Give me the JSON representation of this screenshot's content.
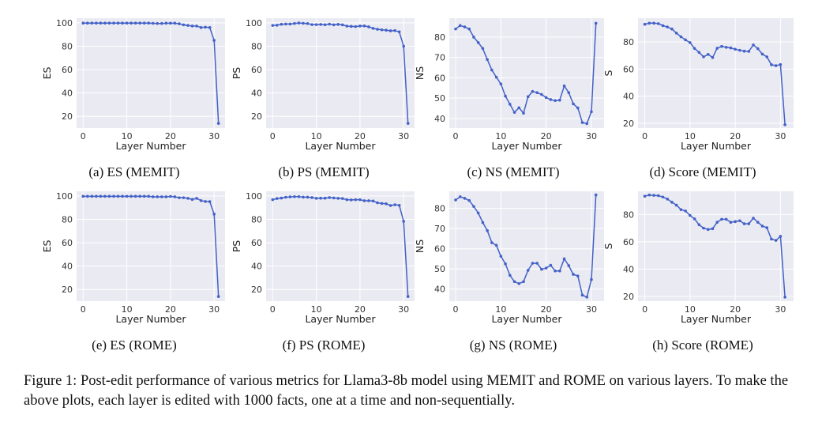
{
  "figure_caption": "Figure 1: Post-edit performance of various metrics for Llama3-8b model using MEMIT and ROME on various layers. To make the above plots, each layer is edited with 1000 facts, one at a time and non-sequentially.",
  "style": {
    "background": "#eaeaf2",
    "grid": "#ffffff",
    "line": "#4361c7"
  },
  "chart_data": [
    {
      "type": "line",
      "caption": "(a) ES (MEMIT)",
      "xlabel": "Layer Number",
      "ylabel": "ES",
      "xlim": [
        -1.5,
        32.5
      ],
      "ylim": [
        10,
        104
      ],
      "xticks": [
        0,
        10,
        20,
        30
      ],
      "yticks": [
        20,
        40,
        60,
        80,
        100
      ],
      "grid": true,
      "x": [
        0,
        1,
        2,
        3,
        4,
        5,
        6,
        7,
        8,
        9,
        10,
        11,
        12,
        13,
        14,
        15,
        16,
        17,
        18,
        19,
        20,
        21,
        22,
        23,
        24,
        25,
        26,
        27,
        28,
        29,
        30,
        31
      ],
      "y": [
        99.8,
        99.8,
        99.8,
        99.8,
        99.8,
        99.8,
        99.8,
        99.8,
        99.8,
        99.8,
        99.8,
        99.8,
        99.8,
        99.8,
        99.8,
        99.8,
        99.6,
        99.5,
        99.5,
        99.7,
        99.7,
        99.7,
        99.2,
        98.3,
        97.8,
        97.3,
        97.3,
        96,
        96.3,
        96,
        85,
        14
      ]
    },
    {
      "type": "line",
      "caption": "(b) PS (MEMIT)",
      "xlabel": "Layer Number",
      "ylabel": "PS",
      "xlim": [
        -1.5,
        32.5
      ],
      "ylim": [
        10,
        104
      ],
      "xticks": [
        0,
        10,
        20,
        30
      ],
      "yticks": [
        20,
        40,
        60,
        80,
        100
      ],
      "grid": true,
      "x": [
        0,
        1,
        2,
        3,
        4,
        5,
        6,
        7,
        8,
        9,
        10,
        11,
        12,
        13,
        14,
        15,
        16,
        17,
        18,
        19,
        20,
        21,
        22,
        23,
        24,
        25,
        26,
        27,
        28,
        29,
        30,
        31
      ],
      "y": [
        97.8,
        98,
        98.8,
        99,
        99,
        99.5,
        99.9,
        99.6,
        99.4,
        98.5,
        98.5,
        98.6,
        98.4,
        98.9,
        98.3,
        98.7,
        98.3,
        97.2,
        97,
        96.8,
        97.3,
        97.4,
        96.6,
        95.3,
        94.5,
        94,
        93.7,
        93.2,
        93.4,
        92.3,
        80,
        14
      ]
    },
    {
      "type": "line",
      "caption": "(c) NS (MEMIT)",
      "xlabel": "Layer Number",
      "ylabel": "NS",
      "xlim": [
        -1.4,
        32.8
      ],
      "ylim": [
        35.3,
        89.3
      ],
      "xticks": [
        0,
        10,
        20,
        30
      ],
      "yticks": [
        40,
        50,
        60,
        70,
        80
      ],
      "grid": true,
      "x": [
        0,
        1,
        2,
        3,
        4,
        5,
        6,
        7,
        8,
        9,
        10,
        11,
        12,
        13,
        14,
        15,
        16,
        17,
        18,
        19,
        20,
        21,
        22,
        23,
        24,
        25,
        26,
        27,
        28,
        29,
        30,
        31
      ],
      "y": [
        84,
        85.7,
        85,
        84,
        80,
        77.3,
        74.4,
        69,
        63.8,
        60.3,
        57,
        51,
        47,
        43,
        45.3,
        42.6,
        50.7,
        53.3,
        52.7,
        51.8,
        50.3,
        49.3,
        48.8,
        49,
        56,
        52.7,
        47.2,
        45.2,
        38,
        37.5,
        43.3,
        86.8
      ]
    },
    {
      "type": "line",
      "caption": "(d) Score (MEMIT)",
      "xlabel": "Layer Number",
      "ylabel": "S",
      "xlim": [
        -1.5,
        32.9
      ],
      "ylim": [
        16.5,
        97.5
      ],
      "xticks": [
        0,
        10,
        20,
        30
      ],
      "yticks": [
        20,
        40,
        60,
        80
      ],
      "grid": true,
      "x": [
        0,
        1,
        2,
        3,
        4,
        5,
        6,
        7,
        8,
        9,
        10,
        11,
        12,
        13,
        14,
        15,
        16,
        17,
        18,
        19,
        20,
        21,
        22,
        23,
        24,
        25,
        26,
        27,
        28,
        29,
        30,
        31
      ],
      "y": [
        93,
        93.8,
        93.8,
        93.5,
        92,
        91,
        89.5,
        86.5,
        83.8,
        81.5,
        79.5,
        75.2,
        72.3,
        69,
        70.8,
        68.5,
        75.3,
        76.7,
        76,
        75.6,
        74.6,
        73.8,
        73.2,
        73,
        77.8,
        75,
        71,
        69,
        63.2,
        62.5,
        63.3,
        19
      ]
    },
    {
      "type": "line",
      "caption": "(e) ES (ROME)",
      "xlabel": "Layer Number",
      "ylabel": "ES",
      "xlim": [
        -1.5,
        32.5
      ],
      "ylim": [
        10,
        104
      ],
      "xticks": [
        0,
        10,
        20,
        30
      ],
      "yticks": [
        20,
        40,
        60,
        80,
        100
      ],
      "grid": true,
      "x": [
        0,
        1,
        2,
        3,
        4,
        5,
        6,
        7,
        8,
        9,
        10,
        11,
        12,
        13,
        14,
        15,
        16,
        17,
        18,
        19,
        20,
        21,
        22,
        23,
        24,
        25,
        26,
        27,
        28,
        29,
        30,
        31
      ],
      "y": [
        99.7,
        99.7,
        99.7,
        99.7,
        99.7,
        99.7,
        99.7,
        99.7,
        99.7,
        99.7,
        99.7,
        99.7,
        99.7,
        99.7,
        99.7,
        99.7,
        99.3,
        99.3,
        99.3,
        99.3,
        99.6,
        99.3,
        98.5,
        98.5,
        98,
        97,
        98,
        96,
        95.3,
        95.2,
        84.5,
        14
      ]
    },
    {
      "type": "line",
      "caption": "(f) PS (ROME)",
      "xlabel": "Layer Number",
      "ylabel": "PS",
      "xlim": [
        -1.5,
        32.5
      ],
      "ylim": [
        10,
        104
      ],
      "xticks": [
        0,
        10,
        20,
        30
      ],
      "yticks": [
        20,
        40,
        60,
        80,
        100
      ],
      "grid": true,
      "x": [
        0,
        1,
        2,
        3,
        4,
        5,
        6,
        7,
        8,
        9,
        10,
        11,
        12,
        13,
        14,
        15,
        16,
        17,
        18,
        19,
        20,
        21,
        22,
        23,
        24,
        25,
        26,
        27,
        28,
        29,
        30,
        31
      ],
      "y": [
        96.8,
        97.8,
        98.2,
        98.9,
        99.2,
        99.4,
        99.4,
        99,
        99,
        98.6,
        98,
        98.1,
        98.1,
        98.6,
        98.3,
        98,
        97.8,
        96.8,
        96.6,
        96.8,
        96.8,
        95.9,
        95.9,
        95.7,
        94.2,
        93.6,
        93.3,
        91.8,
        92.5,
        92,
        78.3,
        14
      ]
    },
    {
      "type": "line",
      "caption": "(g) NS (ROME)",
      "xlabel": "Layer Number",
      "ylabel": "NS",
      "xlim": [
        -1.4,
        32.8
      ],
      "ylim": [
        34,
        88.5
      ],
      "xticks": [
        0,
        10,
        20,
        30
      ],
      "yticks": [
        40,
        50,
        60,
        70,
        80
      ],
      "grid": true,
      "x": [
        0,
        1,
        2,
        3,
        4,
        5,
        6,
        7,
        8,
        9,
        10,
        11,
        12,
        13,
        14,
        15,
        16,
        17,
        18,
        19,
        20,
        21,
        22,
        23,
        24,
        25,
        26,
        27,
        28,
        29,
        30,
        31
      ],
      "y": [
        84.2,
        85.8,
        85,
        83.9,
        81,
        77.7,
        73,
        69,
        63,
        61.7,
        56.3,
        52.5,
        46.8,
        43.7,
        42.7,
        43.7,
        49.3,
        52.8,
        52.8,
        49.8,
        50.4,
        51.8,
        49,
        49,
        55,
        51.6,
        47.3,
        46.5,
        37,
        36,
        44.7,
        86.7
      ]
    },
    {
      "type": "line",
      "caption": "(h) Score (ROME)",
      "xlabel": "Layer Number",
      "ylabel": "S",
      "xlim": [
        -1.5,
        32.9
      ],
      "ylim": [
        16.5,
        97
      ],
      "xticks": [
        0,
        10,
        20,
        30
      ],
      "yticks": [
        20,
        40,
        60,
        80
      ],
      "grid": true,
      "x": [
        0,
        1,
        2,
        3,
        4,
        5,
        6,
        7,
        8,
        9,
        10,
        11,
        12,
        13,
        14,
        15,
        16,
        17,
        18,
        19,
        20,
        21,
        22,
        23,
        24,
        25,
        26,
        27,
        28,
        29,
        30,
        31
      ],
      "y": [
        93.4,
        94.3,
        94,
        93.8,
        92.8,
        91.3,
        89,
        86.8,
        83.6,
        82.6,
        79.3,
        76.8,
        72.5,
        70,
        69,
        69.6,
        74.3,
        76.5,
        76.5,
        74.3,
        74.8,
        75.4,
        73.2,
        73.2,
        77.3,
        74.3,
        71.5,
        70.3,
        62,
        61,
        64,
        19.5
      ]
    }
  ]
}
